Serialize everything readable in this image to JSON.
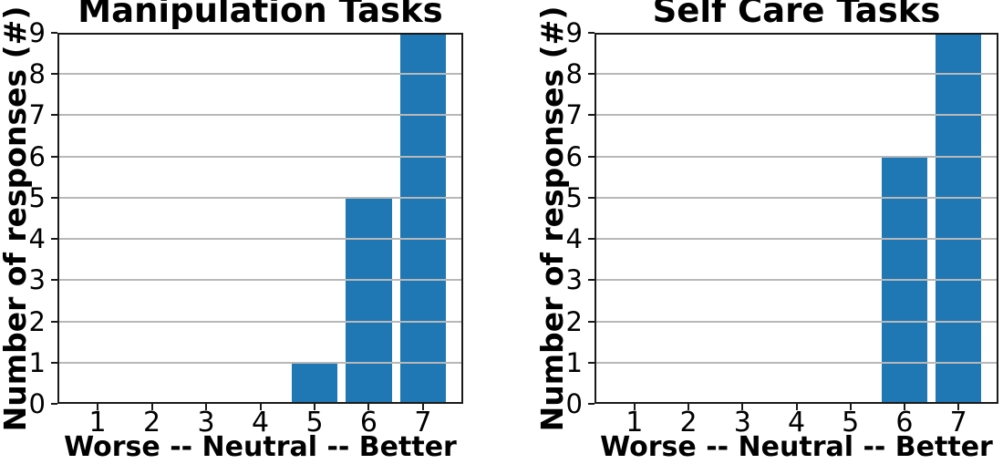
{
  "figure": {
    "background": "#ffffff"
  },
  "chart_data": [
    {
      "type": "bar",
      "title": "Manipulation Tasks",
      "xlabel": "Worse -- Neutral -- Better",
      "ylabel": "Number of responses (#)",
      "categories": [
        1,
        2,
        3,
        4,
        5,
        6,
        7
      ],
      "values": [
        0,
        0,
        0,
        0,
        1,
        5,
        9
      ],
      "xticks": [
        1,
        2,
        3,
        4,
        5,
        6,
        7
      ],
      "yticks": [
        0,
        1,
        2,
        3,
        4,
        5,
        6,
        7,
        8,
        9
      ],
      "xlim": [
        0.26,
        7.74
      ],
      "ylim": [
        0,
        9
      ],
      "bar_width": 0.85,
      "bar_color": "#1f77b4",
      "grid": "horizontal",
      "grid_color": "#b8b8b8",
      "axis_color": "#1a1a1a",
      "legend": "none"
    },
    {
      "type": "bar",
      "title": "Self Care Tasks",
      "xlabel": "Worse -- Neutral -- Better",
      "ylabel": "Number of responses (#)",
      "categories": [
        1,
        2,
        3,
        4,
        5,
        6,
        7
      ],
      "values": [
        0,
        0,
        0,
        0,
        0,
        6,
        9
      ],
      "xticks": [
        1,
        2,
        3,
        4,
        5,
        6,
        7
      ],
      "yticks": [
        0,
        1,
        2,
        3,
        4,
        5,
        6,
        7,
        8,
        9
      ],
      "xlim": [
        0.26,
        7.74
      ],
      "ylim": [
        0,
        9
      ],
      "bar_width": 0.85,
      "bar_color": "#1f77b4",
      "grid": "horizontal",
      "grid_color": "#b8b8b8",
      "axis_color": "#1a1a1a",
      "legend": "none"
    }
  ]
}
